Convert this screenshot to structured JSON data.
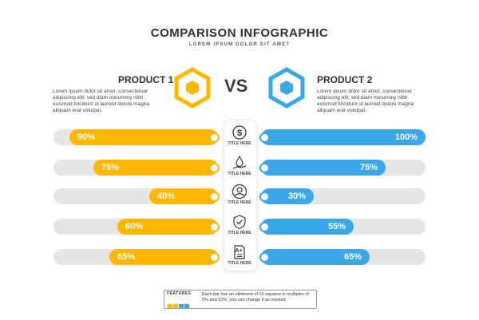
{
  "header": {
    "title": "COMPARISON INFOGRAPHIC",
    "subtitle": "LOREM IPSUM DOLOR SIT AMET"
  },
  "product1": {
    "name": "PRODUCT 1",
    "description": "Lorem ipsum dolor sit amet, consectetuer adipiscing elit, sed diam nonummy nibh euismod tincidunt ut laoreet dolore magna aliquam erat volutpat.",
    "color": "#ffb703"
  },
  "product2": {
    "name": "PRODUCT 2",
    "description": "Lorem ipsum dolor sit amet, consectetuer adipiscing elit, sed diam nonummy nibh euismod tincidunt ut laoreet dolore magna aliquam erat volutpat.",
    "color": "#3aa7e6"
  },
  "vs_label": "VS",
  "rows": [
    {
      "icon": "dollar-icon",
      "label": "TITLE HERE",
      "left_value": 90,
      "left_text": "90%",
      "right_value": 100,
      "right_text": "100%"
    },
    {
      "icon": "hand-drop-icon",
      "label": "TITLE HERE",
      "left_value": 75,
      "left_text": "75%",
      "right_value": 75,
      "right_text": "75%"
    },
    {
      "icon": "user-icon",
      "label": "TITLE HERE",
      "left_value": 40,
      "left_text": "40%",
      "right_value": 30,
      "right_text": "30%"
    },
    {
      "icon": "shield-check-icon",
      "label": "TITLE HERE",
      "left_value": 60,
      "left_text": "60%",
      "right_value": 55,
      "right_text": "55%"
    },
    {
      "icon": "document-grade-icon",
      "label": "TITLE HERE",
      "left_value": 65,
      "left_text": "65%",
      "right_value": 65,
      "right_text": "65%"
    }
  ],
  "legend": {
    "title": "FEATURES",
    "text": "Each bar has an allotment of 10 squares in multiples of 5% and 10%, you can change it as needed."
  }
}
